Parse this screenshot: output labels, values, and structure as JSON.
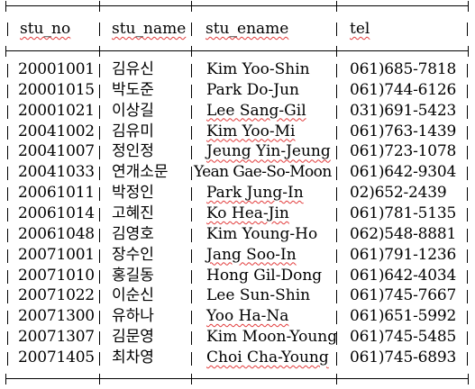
{
  "table": {
    "columns": [
      "stu_no",
      "stu_name",
      "stu_ename",
      "tel"
    ],
    "rows": [
      {
        "stu_no": "20001001",
        "stu_name": "김유신",
        "stu_ename": "Kim Yoo-Shin",
        "tel": "061)685-7818"
      },
      {
        "stu_no": "20001015",
        "stu_name": "박도준",
        "stu_ename": "Park Do-Jun",
        "tel": "061)744-6126"
      },
      {
        "stu_no": "20001021",
        "stu_name": "이상길",
        "stu_ename": "Lee Sang-Gil",
        "tel": "031)691-5423"
      },
      {
        "stu_no": "20041002",
        "stu_name": "김유미",
        "stu_ename": "Kim Yoo-Mi",
        "tel": "061)763-1439"
      },
      {
        "stu_no": "20041007",
        "stu_name": "정인정",
        "stu_ename": "Jeung Yin-Jeung",
        "tel": "061)723-1078"
      },
      {
        "stu_no": "20041033",
        "stu_name": "연개소문",
        "stu_ename": "Yean Gae-So-Moon",
        "tel": "061)642-9304"
      },
      {
        "stu_no": "20061011",
        "stu_name": "박정인",
        "stu_ename": "Park Jung-In",
        "tel": "02)652-2439"
      },
      {
        "stu_no": "20061014",
        "stu_name": "고혜진",
        "stu_ename": "Ko Hea-Jin",
        "tel": "061)781-5135"
      },
      {
        "stu_no": "20061048",
        "stu_name": "김영호",
        "stu_ename": "Kim Young-Ho",
        "tel": "062)548-8881"
      },
      {
        "stu_no": "20071001",
        "stu_name": "장수인",
        "stu_ename": "Jang Soo-In",
        "tel": "061)791-1236"
      },
      {
        "stu_no": "20071010",
        "stu_name": "홍길동",
        "stu_ename": "Hong Gil-Dong",
        "tel": "061)642-4034"
      },
      {
        "stu_no": "20071022",
        "stu_name": "이순신",
        "stu_ename": "Lee Sun-Shin",
        "tel": "061)745-7667"
      },
      {
        "stu_no": "20071300",
        "stu_name": "유하나",
        "stu_ename": "Yoo Ha-Na",
        "tel": "061)651-5992"
      },
      {
        "stu_no": "20071307",
        "stu_name": "김문영",
        "stu_ename": "Kim Moon-Young",
        "tel": "061)745-5485"
      },
      {
        "stu_no": "20071405",
        "stu_name": "최차영",
        "stu_ename": "Choi Cha-Young",
        "tel": "061)745-6893"
      }
    ]
  }
}
